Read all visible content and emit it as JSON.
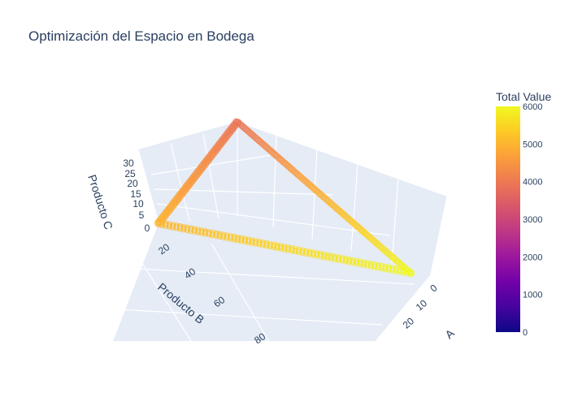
{
  "chart_data": {
    "type": "scatter3d",
    "title": "Optimización del Espacio en Bodega",
    "axes": {
      "x": {
        "label": "A",
        "ticks": [
          "0",
          "10",
          "20"
        ]
      },
      "y": {
        "label": "Producto B",
        "ticks": [
          "20",
          "40",
          "60",
          "80"
        ]
      },
      "z": {
        "label": "Producto C",
        "ticks": [
          "0",
          "5",
          "10",
          "15",
          "20",
          "25",
          "30"
        ]
      }
    },
    "colorbar": {
      "title": "Total Value",
      "ticks": [
        "0",
        "1000",
        "2000",
        "3000",
        "4000",
        "5000",
        "6000"
      ],
      "range": [
        0,
        6000
      ],
      "colorscale": "plasma"
    },
    "triangle_vertices": [
      {
        "A": 0,
        "B": 0,
        "C": 33,
        "total_value": 3900
      },
      {
        "A": 0,
        "B": 100,
        "C": 0,
        "total_value": 5000
      },
      {
        "A": 33,
        "B": 0,
        "C": 0,
        "total_value": 6000
      }
    ],
    "marker_symbol": "circle-open",
    "grid": true,
    "background": "#e5ecf6"
  }
}
